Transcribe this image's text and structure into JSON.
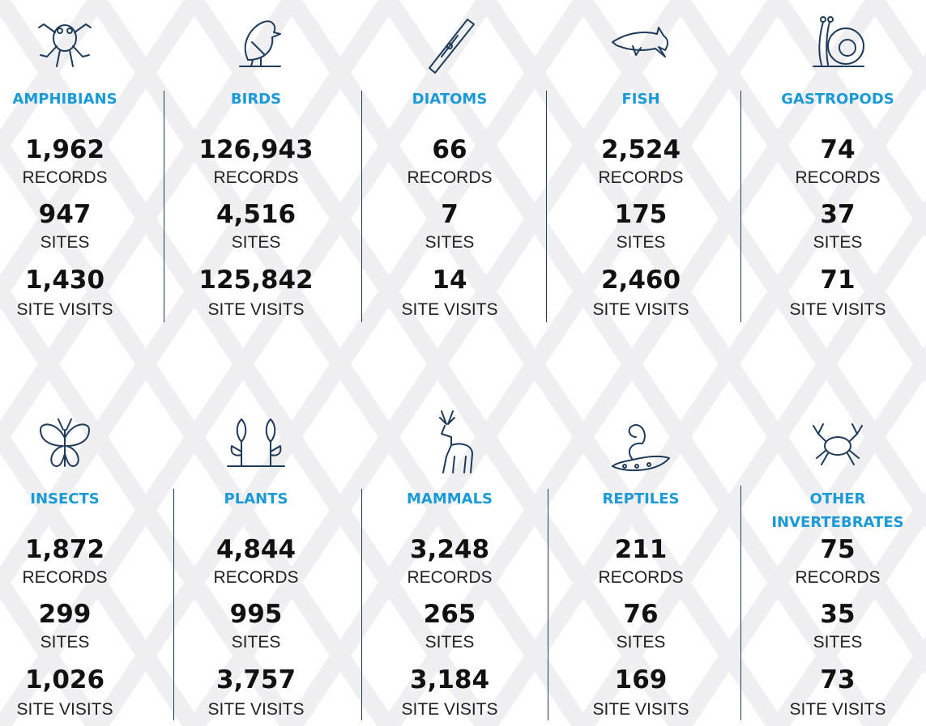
{
  "groups": [
    {
      "name": "AMPHIBIANS",
      "stats": [
        {
          "value": "1,962",
          "label": "RECORDS"
        },
        {
          "value": "947",
          "label": "SITES"
        },
        {
          "value": "1,430",
          "label": "SITE VISITS"
        }
      ]
    },
    {
      "name": "BIRDS",
      "stats": [
        {
          "value": "126,943",
          "label": "RECORDS"
        },
        {
          "value": "4,516",
          "label": "SITES"
        },
        {
          "value": "125,842",
          "label": "SITE VISITS"
        }
      ]
    },
    {
      "name": "DIATOMS",
      "stats": [
        {
          "value": "66",
          "label": "RECORDS"
        },
        {
          "value": "7",
          "label": "SITES"
        },
        {
          "value": "14",
          "label": "SITE VISITS"
        }
      ]
    },
    {
      "name": "FISH",
      "stats": [
        {
          "value": "2,524",
          "label": "RECORDS"
        },
        {
          "value": "175",
          "label": "SITES"
        },
        {
          "value": "2,460",
          "label": "SITE VISITS"
        }
      ]
    },
    {
      "name": "GASTROPODS",
      "stats": [
        {
          "value": "74",
          "label": "RECORDS"
        },
        {
          "value": "37",
          "label": "SITES"
        },
        {
          "value": "71",
          "label": "SITE VISITS"
        }
      ]
    },
    {
      "name": "INSECTS",
      "stats": [
        {
          "value": "1,872",
          "label": "RECORDS"
        },
        {
          "value": "299",
          "label": "SITES"
        },
        {
          "value": "1,026",
          "label": "SITE VISITS"
        }
      ]
    },
    {
      "name": "PLANTS",
      "stats": [
        {
          "value": "4,844",
          "label": "RECORDS"
        },
        {
          "value": "995",
          "label": "SITES"
        },
        {
          "value": "3,757",
          "label": "SITE VISITS"
        }
      ]
    },
    {
      "name": "MAMMALS",
      "stats": [
        {
          "value": "3,248",
          "label": "RECORDS"
        },
        {
          "value": "265",
          "label": "SITES"
        },
        {
          "value": "3,184",
          "label": "SITE VISITS"
        }
      ]
    },
    {
      "name": "REPTILES",
      "stats": [
        {
          "value": "211",
          "label": "RECORDS"
        },
        {
          "value": "76",
          "label": "SITES"
        },
        {
          "value": "169",
          "label": "SITE VISITS"
        }
      ]
    },
    {
      "name": "OTHER INVERTEBRATES",
      "stats": [
        {
          "value": "75",
          "label": "RECORDS"
        },
        {
          "value": "35",
          "label": "SITES"
        },
        {
          "value": "73",
          "label": "SITE VISITS"
        }
      ]
    }
  ]
}
